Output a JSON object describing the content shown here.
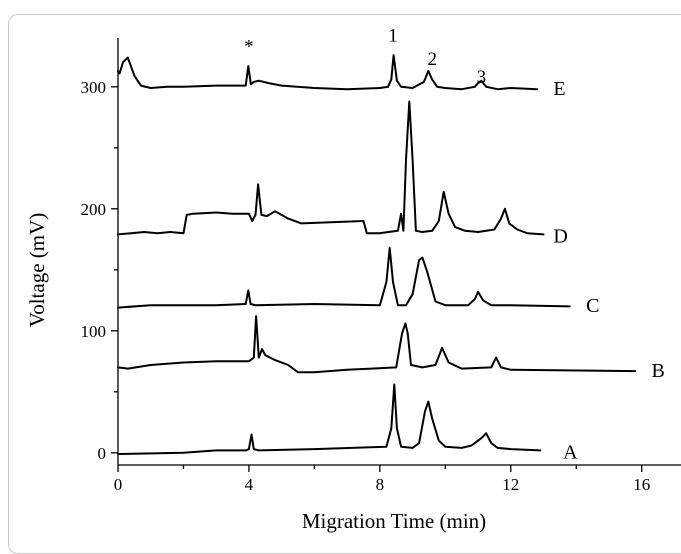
{
  "chart_data": {
    "type": "line",
    "xlabel": "Migration Time (min)",
    "ylabel": "Voltage (mV)",
    "xlim": [
      0,
      17.2
    ],
    "ylim": [
      -10,
      340
    ],
    "x_ticks": [
      0,
      4,
      8,
      12,
      16
    ],
    "y_ticks": [
      0,
      100,
      200,
      300
    ],
    "grid": false,
    "peak_labels": [
      {
        "text": "*",
        "x": 4.0,
        "y": 328
      },
      {
        "text": "1",
        "x": 8.4,
        "y": 337
      },
      {
        "text": "2",
        "x": 9.6,
        "y": 318
      },
      {
        "text": "3",
        "x": 11.1,
        "y": 303
      }
    ],
    "series": [
      {
        "name": "A",
        "label_at": [
          13.6,
          1
        ],
        "x": [
          0,
          2,
          3,
          3.9,
          4.0,
          4.08,
          4.15,
          4.3,
          6,
          8.2,
          8.35,
          8.44,
          8.52,
          8.65,
          9.0,
          9.2,
          9.38,
          9.48,
          9.6,
          9.8,
          10.0,
          10.5,
          10.8,
          11.1,
          11.25,
          11.4,
          11.6,
          12.0,
          12.9
        ],
        "y": [
          -1,
          0,
          2,
          2,
          3,
          15,
          3,
          2,
          3,
          5,
          20,
          56,
          20,
          5,
          4,
          8,
          34,
          42,
          28,
          10,
          5,
          4,
          6,
          12,
          16,
          8,
          4,
          3,
          2
        ]
      },
      {
        "name": "B",
        "label_at": [
          16.3,
          68
        ],
        "x": [
          0,
          0.3,
          1.0,
          2,
          3,
          4.0,
          4.15,
          4.22,
          4.3,
          4.4,
          4.5,
          4.8,
          5.2,
          5.5,
          6,
          7,
          8.5,
          8.68,
          8.78,
          8.85,
          8.95,
          9.3,
          9.7,
          9.9,
          10.1,
          10.5,
          11.4,
          11.55,
          11.7,
          12,
          15.8
        ],
        "y": [
          70,
          69,
          72,
          74,
          75,
          75,
          78,
          112,
          78,
          85,
          80,
          76,
          72,
          66,
          66,
          68,
          70,
          98,
          106,
          98,
          72,
          70,
          72,
          86,
          74,
          69,
          70,
          78,
          70,
          68,
          67
        ]
      },
      {
        "name": "C",
        "label_at": [
          14.3,
          121
        ],
        "x": [
          0,
          1,
          2,
          3,
          3.9,
          3.98,
          4.05,
          4.2,
          6,
          8.0,
          8.2,
          8.3,
          8.4,
          8.55,
          8.8,
          9.0,
          9.2,
          9.3,
          9.45,
          9.7,
          10.0,
          10.7,
          10.9,
          11.0,
          11.15,
          11.4,
          12,
          13.8
        ],
        "y": [
          119,
          121,
          121,
          121,
          122,
          133,
          122,
          121,
          122,
          121,
          140,
          168,
          140,
          121,
          121,
          130,
          158,
          160,
          148,
          124,
          121,
          121,
          126,
          132,
          125,
          121,
          121,
          120
        ]
      },
      {
        "name": "D",
        "label_at": [
          13.3,
          178
        ],
        "x": [
          0,
          0.4,
          0.8,
          1.2,
          1.6,
          2.0,
          2.1,
          2.3,
          3.0,
          3.5,
          4.0,
          4.1,
          4.2,
          4.28,
          4.38,
          4.55,
          4.8,
          5.2,
          5.6,
          6.5,
          7.5,
          7.6,
          8.0,
          8.55,
          8.65,
          8.72,
          8.8,
          8.9,
          9.0,
          9.1,
          9.3,
          9.6,
          9.8,
          9.95,
          10.1,
          10.3,
          10.6,
          11.0,
          11.5,
          11.7,
          11.82,
          11.95,
          12.2,
          12.5,
          13.0
        ],
        "y": [
          179,
          180,
          181,
          180,
          181,
          180,
          195,
          196,
          197,
          196,
          196,
          190,
          195,
          220,
          195,
          194,
          198,
          192,
          188,
          189,
          190,
          180,
          180,
          182,
          196,
          182,
          240,
          288,
          240,
          182,
          181,
          182,
          190,
          214,
          196,
          185,
          182,
          181,
          183,
          192,
          200,
          188,
          183,
          180,
          179
        ]
      },
      {
        "name": "E",
        "label_at": [
          13.3,
          299
        ],
        "x": [
          0,
          0.05,
          0.15,
          0.3,
          0.5,
          0.7,
          1.0,
          1.5,
          2.0,
          3.0,
          3.9,
          3.98,
          4.06,
          4.15,
          4.3,
          4.6,
          5.0,
          6,
          7,
          8.0,
          8.25,
          8.35,
          8.42,
          8.52,
          8.65,
          9.0,
          9.35,
          9.48,
          9.6,
          9.75,
          10.0,
          10.5,
          10.9,
          11.0,
          11.1,
          11.25,
          11.6,
          12.0,
          12.8
        ],
        "y": [
          313,
          311,
          320,
          324,
          309,
          301,
          299,
          300,
          300,
          301,
          301,
          317,
          302,
          304,
          305,
          303,
          301,
          299,
          298,
          299,
          300,
          306,
          326,
          305,
          300,
          299,
          304,
          313,
          306,
          300,
          299,
          298,
          300,
          303,
          305,
          300,
          298,
          299,
          298
        ]
      }
    ]
  }
}
